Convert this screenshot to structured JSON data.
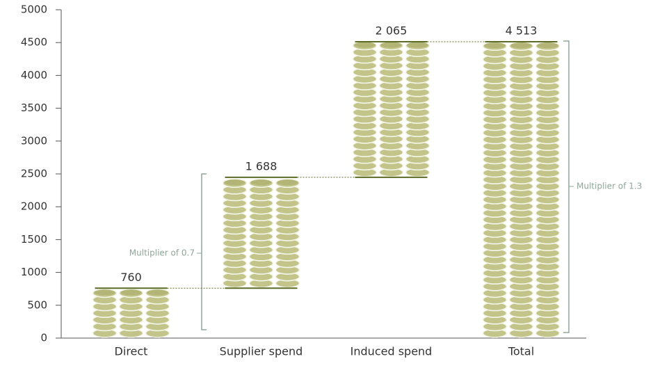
{
  "chart_data": {
    "type": "waterfall",
    "categories": [
      "Direct",
      "Supplier spend",
      "Induced spend",
      "Total"
    ],
    "values": [
      760,
      1688,
      2065,
      4513
    ],
    "value_labels": [
      "760",
      "1 688",
      "2 065",
      "4 513"
    ],
    "color": "#c2c48a",
    "ylim": [
      0,
      5000
    ],
    "yticks": [
      0,
      500,
      1000,
      1500,
      2000,
      2500,
      3000,
      3500,
      4000,
      4500,
      5000
    ],
    "annotations": [
      "Multiplier of 0.7",
      "Multiplier of 1.3"
    ]
  }
}
